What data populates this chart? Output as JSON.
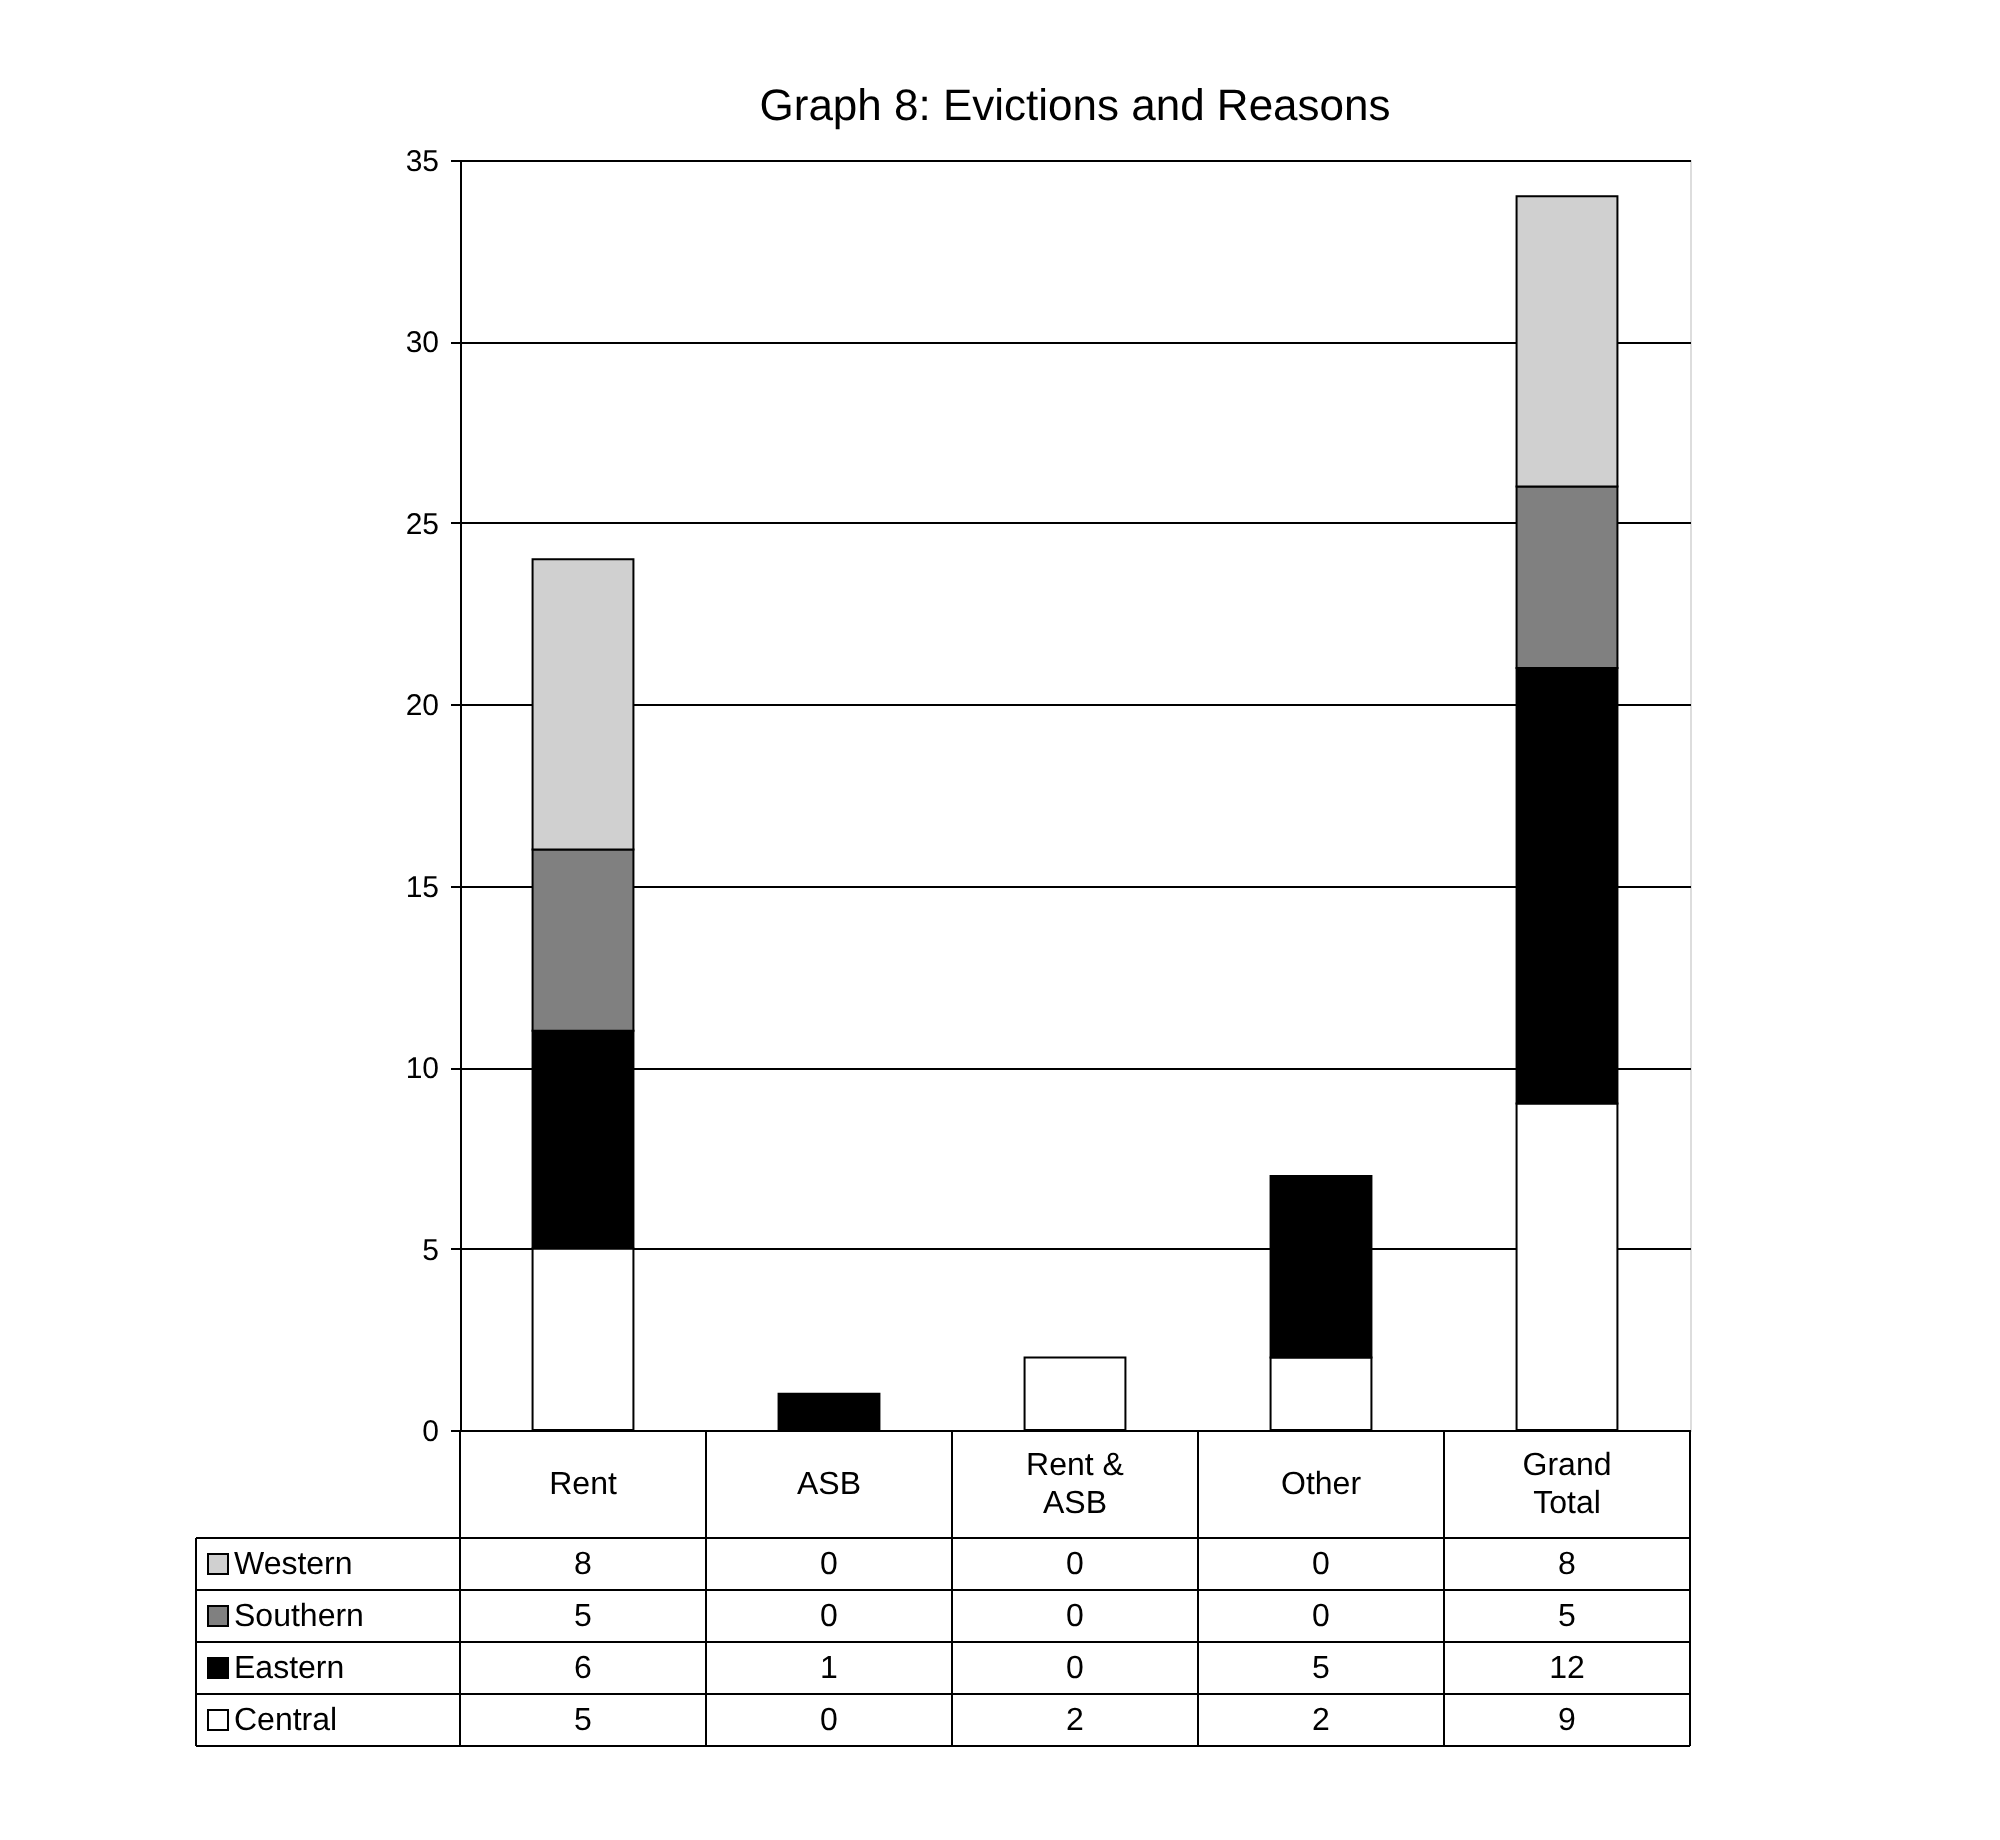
{
  "chart_data": {
    "type": "bar",
    "title": "Graph 8: Evictions and Reasons",
    "categories": [
      "Rent",
      "ASB",
      "Rent & ASB",
      "Other",
      "Grand Total"
    ],
    "stacked": true,
    "series": [
      {
        "name": "Central",
        "color": "#ffffff",
        "values": [
          5,
          0,
          2,
          2,
          9
        ]
      },
      {
        "name": "Eastern",
        "color": "#000000",
        "values": [
          6,
          1,
          0,
          5,
          12
        ]
      },
      {
        "name": "Southern",
        "color": "#808080",
        "values": [
          5,
          0,
          0,
          0,
          5
        ]
      },
      {
        "name": "Western",
        "color": "#d0d0d0",
        "values": [
          8,
          0,
          0,
          0,
          8
        ]
      }
    ],
    "ylim": [
      0,
      35
    ],
    "yticks": [
      0,
      5,
      10,
      15,
      20,
      25,
      30,
      35
    ],
    "grid": "y",
    "data_labels": true,
    "legend": "bottom"
  }
}
